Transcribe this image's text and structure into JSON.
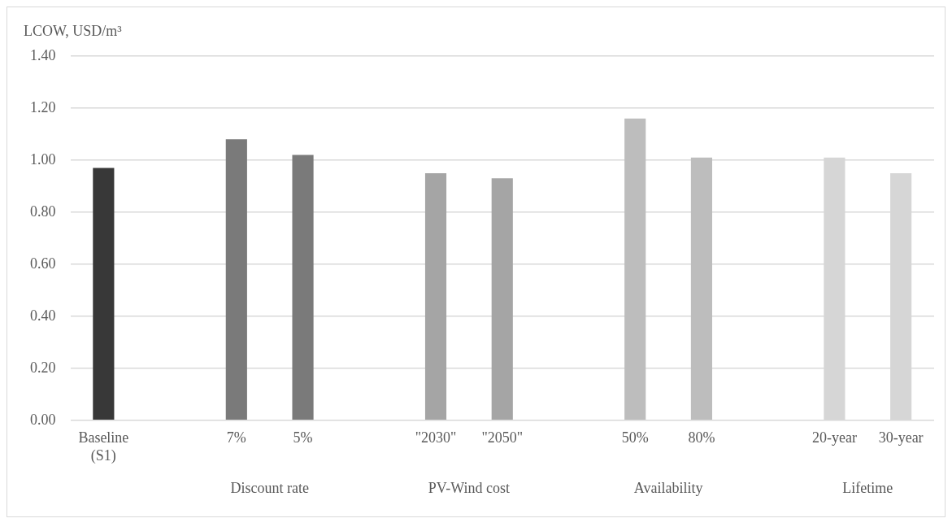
{
  "chart_data": {
    "type": "bar",
    "ylabel": "LCOW, USD/m³",
    "categories": [
      "Baseline (S1)",
      null,
      "7%",
      "5%",
      null,
      "\"2030\"",
      "\"2050\"",
      null,
      "50%",
      "80%",
      null,
      "20-year",
      "30-year"
    ],
    "values": [
      0.97,
      null,
      1.08,
      1.02,
      null,
      0.95,
      0.93,
      null,
      1.16,
      1.01,
      null,
      1.01,
      0.95
    ],
    "colors": [
      "#383838",
      null,
      "#7a7a7a",
      "#7a7a7a",
      null,
      "#a5a5a5",
      "#a5a5a5",
      null,
      "#bdbdbd",
      "#bdbdbd",
      null,
      "#d6d6d6",
      "#d6d6d6"
    ],
    "annotations": [
      "Discount rate",
      "PV-Wind cost",
      "Availability",
      "Lifetime"
    ],
    "ylim": [
      0,
      1.4
    ],
    "yticks": [
      {
        "value": 0,
        "label": "0.00"
      },
      {
        "value": 0.2,
        "label": "0.20"
      },
      {
        "value": 0.4,
        "label": "0.40"
      },
      {
        "value": 0.6,
        "label": "0.60"
      },
      {
        "value": 0.8,
        "label": "0.80"
      },
      {
        "value": 1,
        "label": "1.00"
      },
      {
        "value": 1.2,
        "label": "1.20"
      },
      {
        "value": 1.4,
        "label": "1.40"
      }
    ],
    "grid": "y",
    "legend": false
  }
}
